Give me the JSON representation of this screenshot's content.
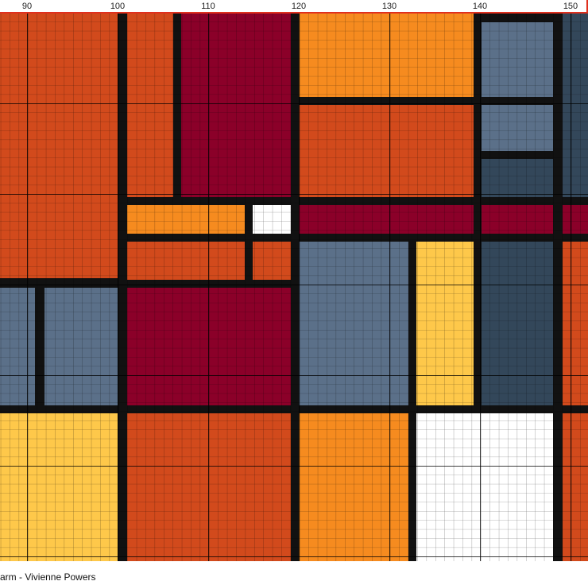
{
  "ruler": {
    "labels": [
      90,
      100,
      110,
      120,
      130,
      140,
      150
    ]
  },
  "footer": "arm - Vivienne Powers"
}
